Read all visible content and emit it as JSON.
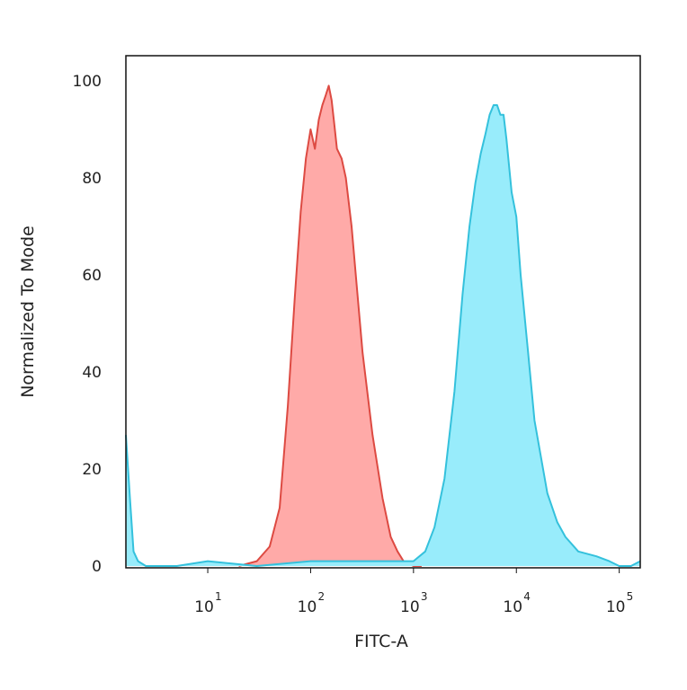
{
  "chart_data": {
    "type": "area",
    "xlabel": "FITC-A",
    "ylabel": "Normalized To Mode",
    "x_scale": "log",
    "xlim": [
      1.6,
      160000
    ],
    "ylim": [
      0,
      105
    ],
    "y_ticks": [
      {
        "value": 0,
        "label": "0"
      },
      {
        "value": 20,
        "label": "20"
      },
      {
        "value": 40,
        "label": "40"
      },
      {
        "value": 60,
        "label": "60"
      },
      {
        "value": 80,
        "label": "80"
      },
      {
        "value": 100,
        "label": "100"
      }
    ],
    "x_ticks": [
      {
        "value": 10,
        "base": "10",
        "exp": "1"
      },
      {
        "value": 100,
        "base": "10",
        "exp": "2"
      },
      {
        "value": 1000,
        "base": "10",
        "exp": "3"
      },
      {
        "value": 10000,
        "base": "10",
        "exp": "4"
      },
      {
        "value": 100000,
        "base": "10",
        "exp": "5"
      }
    ],
    "grid": false,
    "legend": "none",
    "series": [
      {
        "fill": "#ffaaa8",
        "stroke": "#dd4a42",
        "x": [
          20,
          30,
          40,
          50,
          60,
          70,
          80,
          90,
          100,
          110,
          120,
          130,
          140,
          150,
          160,
          170,
          180,
          200,
          220,
          250,
          280,
          320,
          400,
          500,
          600,
          700,
          800,
          1000,
          1200
        ],
        "y": [
          0,
          1,
          4,
          12,
          33,
          55,
          73,
          84,
          90,
          86,
          92,
          95,
          97,
          99,
          96,
          91,
          86,
          84,
          80,
          70,
          58,
          44,
          27,
          14,
          6,
          3,
          1,
          0,
          0
        ]
      },
      {
        "fill": "#98ecfb",
        "stroke": "#34c1dc",
        "x": [
          1.6,
          1.75,
          1.9,
          2.1,
          2.5,
          3,
          5,
          10,
          30,
          100,
          300,
          1000,
          1300,
          1600,
          2000,
          2500,
          3000,
          3500,
          4000,
          4500,
          5000,
          5500,
          6000,
          6500,
          7000,
          7500,
          8000,
          9000,
          10000,
          11000,
          13000,
          15000,
          20000,
          25000,
          30000,
          40000,
          60000,
          80000,
          100000,
          130000,
          160000
        ],
        "y": [
          27,
          14,
          3,
          1,
          0,
          0,
          0,
          1,
          0,
          1,
          1,
          1,
          3,
          8,
          18,
          36,
          56,
          70,
          79,
          85,
          89,
          93,
          95,
          95,
          93,
          93,
          88,
          77,
          72,
          60,
          44,
          30,
          15,
          9,
          6,
          3,
          2,
          1,
          0,
          0,
          1
        ]
      }
    ]
  }
}
